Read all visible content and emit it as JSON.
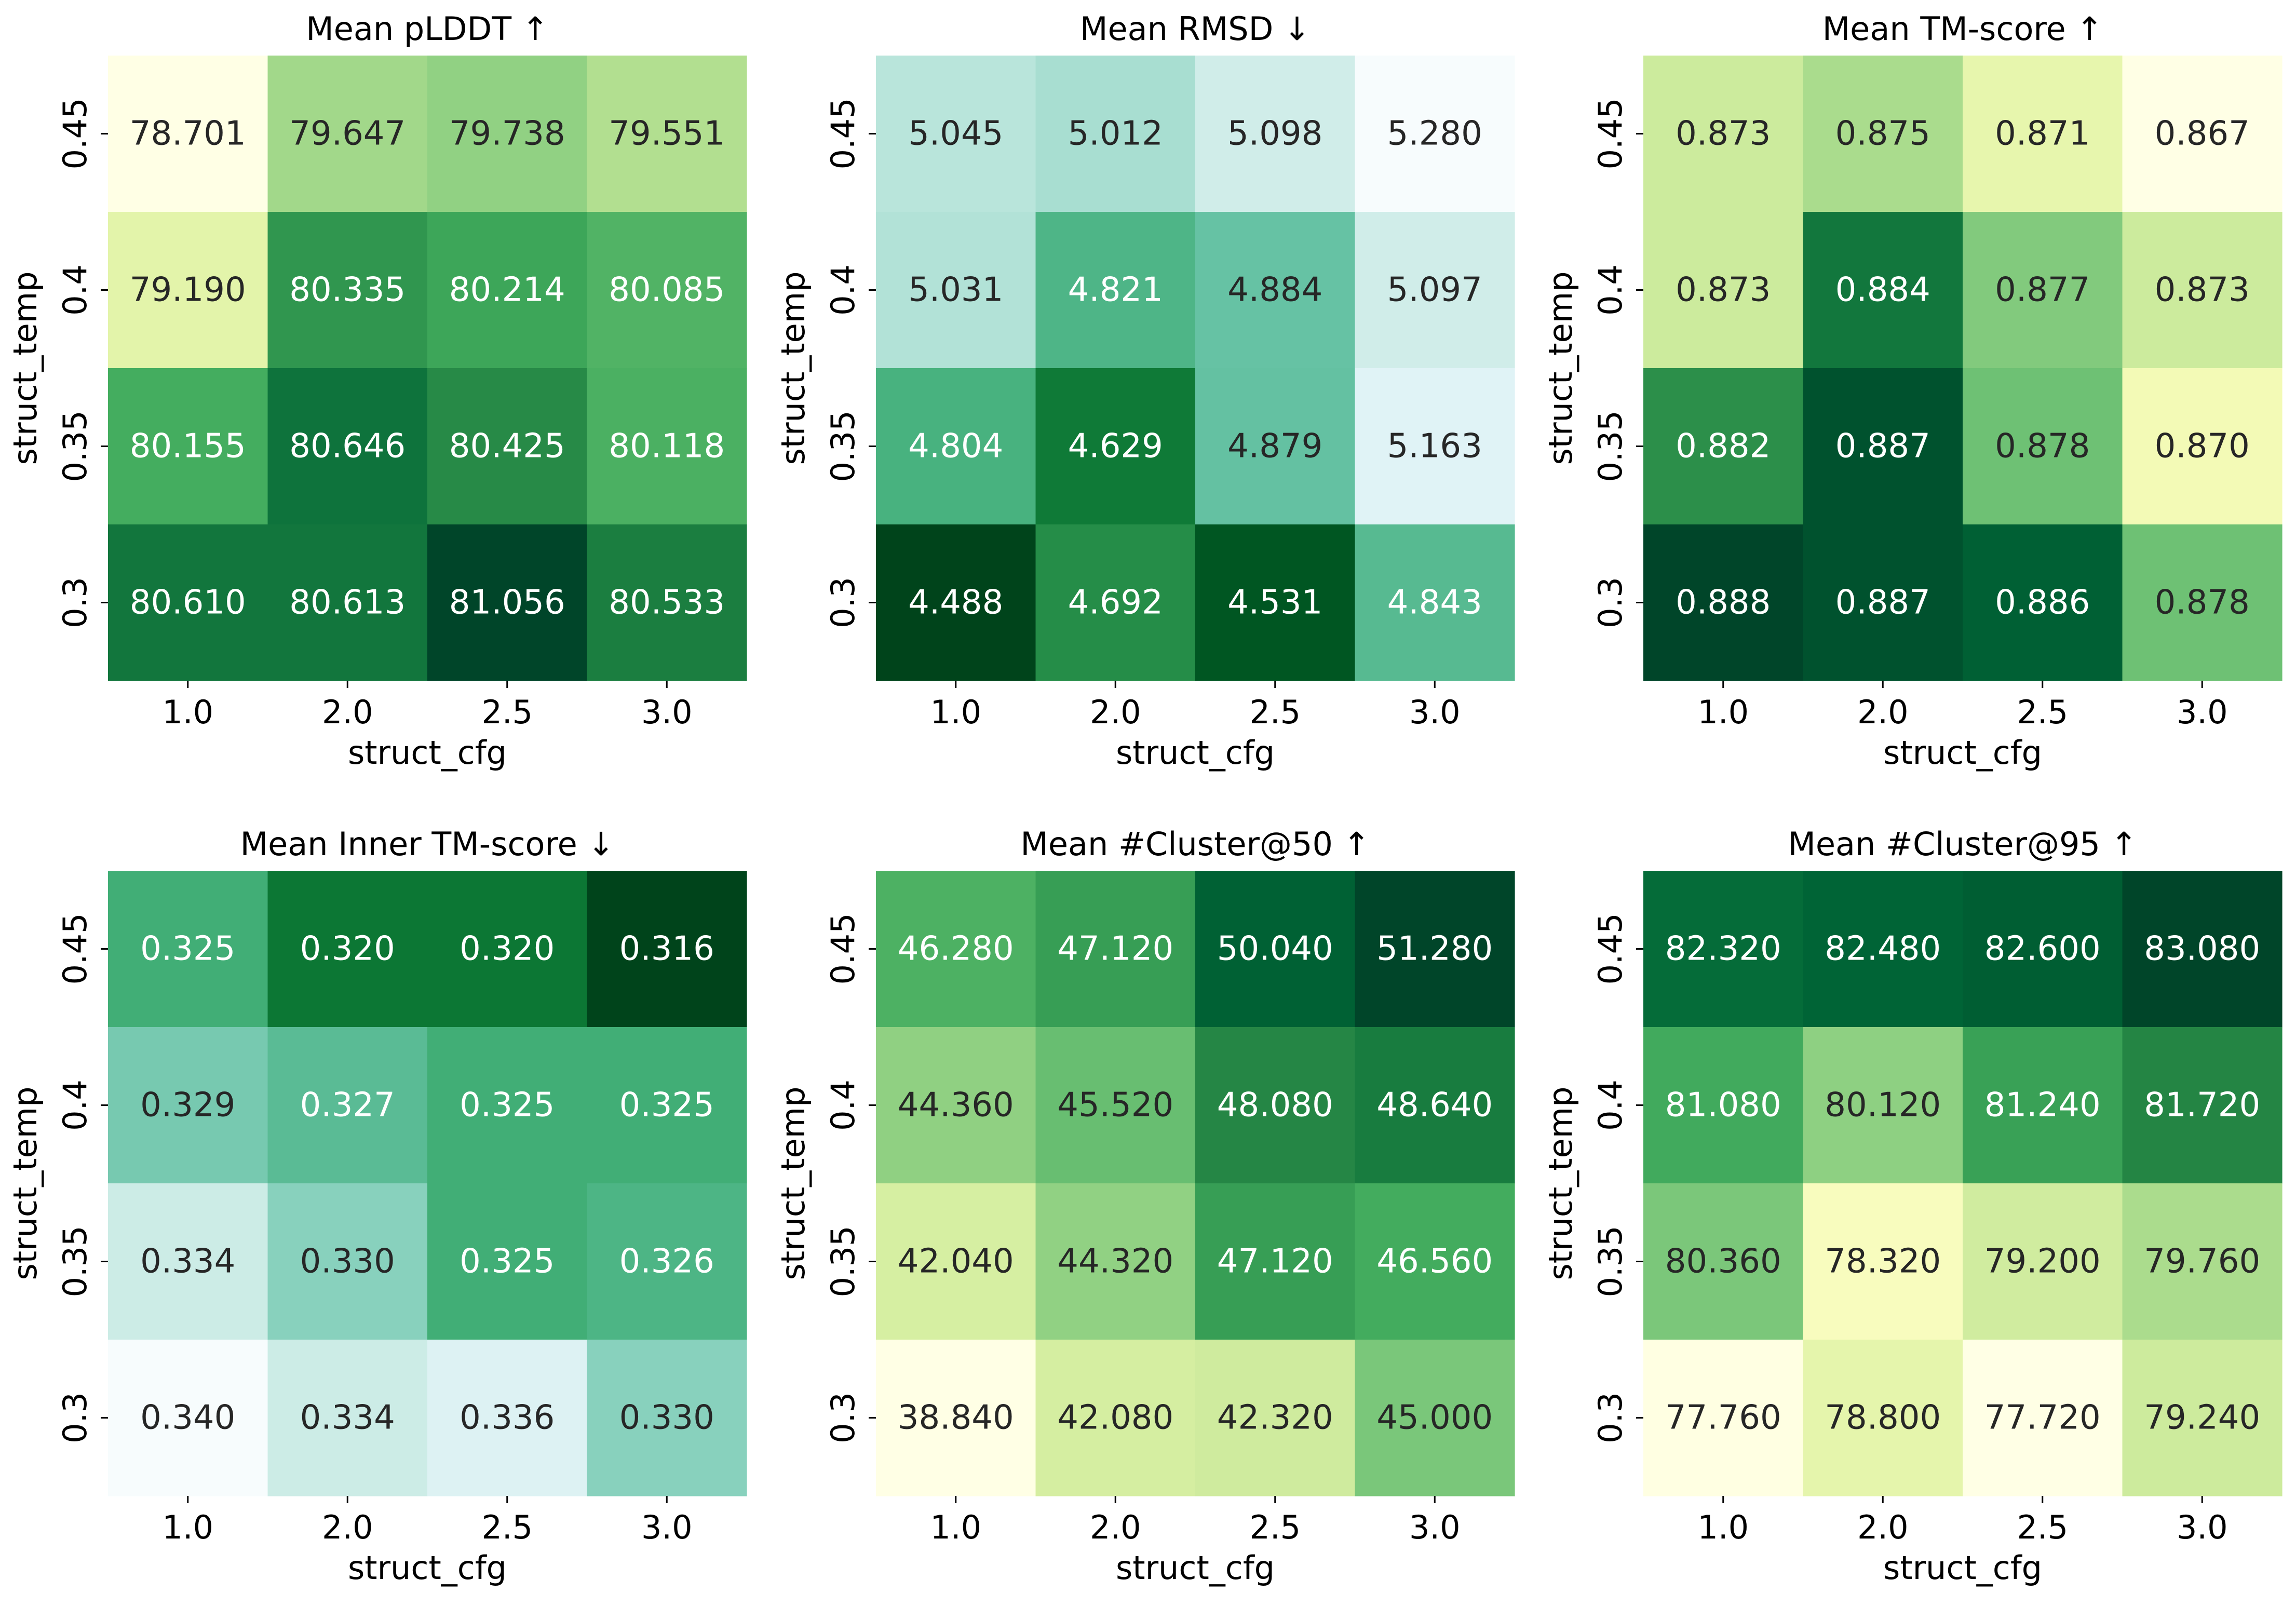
{
  "figure_title": "",
  "chart_data": [
    {
      "type": "heatmap",
      "title": "Mean pLDDT ↑",
      "xlabel": "struct_cfg",
      "ylabel": "struct_temp",
      "x_categories": [
        "1.0",
        "2.0",
        "2.5",
        "3.0"
      ],
      "y_categories": [
        "0.45",
        "0.4",
        "0.35",
        "0.3"
      ],
      "values": [
        [
          78.701,
          79.647,
          79.738,
          79.551
        ],
        [
          79.19,
          80.335,
          80.214,
          80.085
        ],
        [
          80.155,
          80.646,
          80.425,
          80.118
        ],
        [
          80.61,
          80.613,
          81.056,
          80.533
        ]
      ],
      "cell_labels": [
        [
          "78.701",
          "79.647",
          "79.738",
          "79.551"
        ],
        [
          "79.190",
          "80.335",
          "80.214",
          "80.085"
        ],
        [
          "80.155",
          "80.646",
          "80.425",
          "80.118"
        ],
        [
          "80.610",
          "80.613",
          "81.056",
          "80.533"
        ]
      ],
      "colormap": "YlGn",
      "colorbar": false
    },
    {
      "type": "heatmap",
      "title": "Mean RMSD ↓",
      "xlabel": "struct_cfg",
      "ylabel": "struct_temp",
      "x_categories": [
        "1.0",
        "2.0",
        "2.5",
        "3.0"
      ],
      "y_categories": [
        "0.45",
        "0.4",
        "0.35",
        "0.3"
      ],
      "values": [
        [
          5.045,
          5.012,
          5.098,
          5.28
        ],
        [
          5.031,
          4.821,
          4.884,
          5.097
        ],
        [
          4.804,
          4.629,
          4.879,
          5.163
        ],
        [
          4.488,
          4.692,
          4.531,
          4.843
        ]
      ],
      "cell_labels": [
        [
          "5.045",
          "5.012",
          "5.098",
          "5.280"
        ],
        [
          "5.031",
          "4.821",
          "4.884",
          "5.097"
        ],
        [
          "4.804",
          "4.629",
          "4.879",
          "5.163"
        ],
        [
          "4.488",
          "4.692",
          "4.531",
          "4.843"
        ]
      ],
      "colormap": "BuGn_r",
      "colorbar": false
    },
    {
      "type": "heatmap",
      "title": "Mean TM-score ↑",
      "xlabel": "struct_cfg",
      "ylabel": "struct_temp",
      "x_categories": [
        "1.0",
        "2.0",
        "2.5",
        "3.0"
      ],
      "y_categories": [
        "0.45",
        "0.4",
        "0.35",
        "0.3"
      ],
      "values": [
        [
          0.873,
          0.875,
          0.871,
          0.867
        ],
        [
          0.873,
          0.884,
          0.877,
          0.873
        ],
        [
          0.882,
          0.887,
          0.878,
          0.87
        ],
        [
          0.888,
          0.887,
          0.886,
          0.878
        ]
      ],
      "cell_labels": [
        [
          "0.873",
          "0.875",
          "0.871",
          "0.867"
        ],
        [
          "0.873",
          "0.884",
          "0.877",
          "0.873"
        ],
        [
          "0.882",
          "0.887",
          "0.878",
          "0.870"
        ],
        [
          "0.888",
          "0.887",
          "0.886",
          "0.878"
        ]
      ],
      "colormap": "YlGn",
      "colorbar": false
    },
    {
      "type": "heatmap",
      "title": "Mean Inner TM-score ↓",
      "xlabel": "struct_cfg",
      "ylabel": "struct_temp",
      "x_categories": [
        "1.0",
        "2.0",
        "2.5",
        "3.0"
      ],
      "y_categories": [
        "0.45",
        "0.4",
        "0.35",
        "0.3"
      ],
      "values": [
        [
          0.325,
          0.32,
          0.32,
          0.316
        ],
        [
          0.329,
          0.327,
          0.325,
          0.325
        ],
        [
          0.334,
          0.33,
          0.325,
          0.326
        ],
        [
          0.34,
          0.334,
          0.336,
          0.33
        ]
      ],
      "cell_labels": [
        [
          "0.325",
          "0.320",
          "0.320",
          "0.316"
        ],
        [
          "0.329",
          "0.327",
          "0.325",
          "0.325"
        ],
        [
          "0.334",
          "0.330",
          "0.325",
          "0.326"
        ],
        [
          "0.340",
          "0.334",
          "0.336",
          "0.330"
        ]
      ],
      "colormap": "BuGn_r",
      "colorbar": false
    },
    {
      "type": "heatmap",
      "title": "Mean #Cluster@50 ↑",
      "xlabel": "struct_cfg",
      "ylabel": "struct_temp",
      "x_categories": [
        "1.0",
        "2.0",
        "2.5",
        "3.0"
      ],
      "y_categories": [
        "0.45",
        "0.4",
        "0.35",
        "0.3"
      ],
      "values": [
        [
          46.28,
          47.12,
          50.04,
          51.28
        ],
        [
          44.36,
          45.52,
          48.08,
          48.64
        ],
        [
          42.04,
          44.32,
          47.12,
          46.56
        ],
        [
          38.84,
          42.08,
          42.32,
          45.0
        ]
      ],
      "cell_labels": [
        [
          "46.280",
          "47.120",
          "50.040",
          "51.280"
        ],
        [
          "44.360",
          "45.520",
          "48.080",
          "48.640"
        ],
        [
          "42.040",
          "44.320",
          "47.120",
          "46.560"
        ],
        [
          "38.840",
          "42.080",
          "42.320",
          "45.000"
        ]
      ],
      "colormap": "YlGn",
      "colorbar": false
    },
    {
      "type": "heatmap",
      "title": "Mean #Cluster@95 ↑",
      "xlabel": "struct_cfg",
      "ylabel": "struct_temp",
      "x_categories": [
        "1.0",
        "2.0",
        "2.5",
        "3.0"
      ],
      "y_categories": [
        "0.45",
        "0.4",
        "0.35",
        "0.3"
      ],
      "values": [
        [
          82.32,
          82.48,
          82.6,
          83.08
        ],
        [
          81.08,
          80.12,
          81.24,
          81.72
        ],
        [
          80.36,
          78.32,
          79.2,
          79.76
        ],
        [
          77.76,
          78.8,
          77.72,
          79.24
        ]
      ],
      "cell_labels": [
        [
          "82.320",
          "82.480",
          "82.600",
          "83.080"
        ],
        [
          "81.080",
          "80.120",
          "81.240",
          "81.720"
        ],
        [
          "80.360",
          "78.320",
          "79.200",
          "79.760"
        ],
        [
          "77.760",
          "78.800",
          "77.720",
          "79.240"
        ]
      ],
      "colormap": "YlGn",
      "colorbar": false
    }
  ]
}
